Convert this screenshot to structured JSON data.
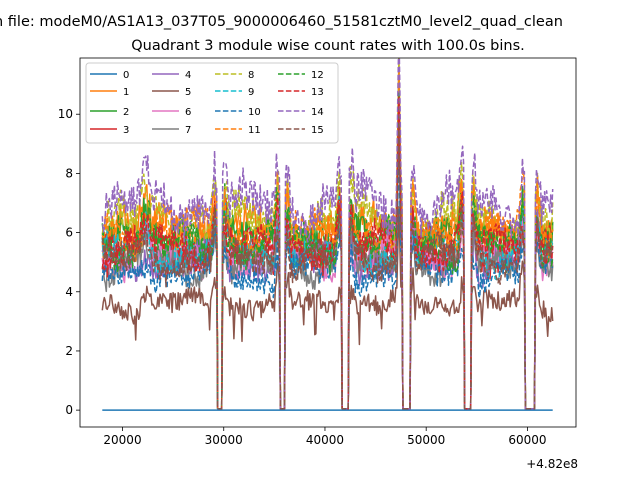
{
  "figure": {
    "suptitle": "n file: modeM0/AS1A13_037T05_9000006460_51581cztM0_level2_quad_clean",
    "title": "Quadrant 3 module wise count rates with 100.0s bins."
  },
  "chart_data": {
    "type": "line",
    "title": "Quadrant 3 module wise count rates with 100.0s bins.",
    "xlabel": "",
    "ylabel": "",
    "x_offset_label": "+4.82e8",
    "xlim": [
      15800,
      64800
    ],
    "ylim": [
      -0.57,
      11.9
    ],
    "xticks": [
      20000,
      30000,
      40000,
      50000,
      60000
    ],
    "yticks": [
      0,
      2,
      4,
      6,
      8,
      10
    ],
    "xtick_labels": [
      "20000",
      "30000",
      "40000",
      "50000",
      "60000"
    ],
    "ytick_labels": [
      "0",
      "2",
      "4",
      "6",
      "8",
      "10"
    ],
    "bin_width": 100,
    "legend": {
      "position": "top-left",
      "ncol": 4
    },
    "gaps": [
      {
        "start": 29400,
        "end": 29800
      },
      {
        "start": 35600,
        "end": 36000
      },
      {
        "start": 41700,
        "end": 42300
      },
      {
        "start": 47700,
        "end": 48400
      },
      {
        "start": 53800,
        "end": 54400
      },
      {
        "start": 59800,
        "end": 60700
      }
    ],
    "segments": [
      [
        18000,
        29300
      ],
      [
        29900,
        35500
      ],
      [
        36100,
        41600
      ],
      [
        42400,
        47600
      ],
      [
        48500,
        53700
      ],
      [
        54500,
        59700
      ],
      [
        60800,
        62500
      ]
    ],
    "spikes": [
      {
        "x": 47300,
        "factor": 1.9
      }
    ],
    "series": [
      {
        "name": "0",
        "color": "#1f77b4",
        "dashed": false,
        "level": 0.0
      },
      {
        "name": "1",
        "color": "#ff7f0e",
        "dashed": false,
        "level": 6.1
      },
      {
        "name": "2",
        "color": "#2ca02c",
        "dashed": false,
        "level": 5.7
      },
      {
        "name": "3",
        "color": "#d62728",
        "dashed": false,
        "level": 5.4
      },
      {
        "name": "4",
        "color": "#9467bd",
        "dashed": false,
        "level": 5.0
      },
      {
        "name": "5",
        "color": "#8c564b",
        "dashed": false,
        "level": 3.6
      },
      {
        "name": "6",
        "color": "#e377c2",
        "dashed": false,
        "level": 5.2
      },
      {
        "name": "7",
        "color": "#7f7f7f",
        "dashed": false,
        "level": 4.9
      },
      {
        "name": "8",
        "color": "#bcbd22",
        "dashed": true,
        "level": 6.4
      },
      {
        "name": "9",
        "color": "#17becf",
        "dashed": true,
        "level": 5.3
      },
      {
        "name": "10",
        "color": "#1f77b4",
        "dashed": true,
        "level": 4.6
      },
      {
        "name": "11",
        "color": "#ff7f0e",
        "dashed": true,
        "level": 6.0
      },
      {
        "name": "12",
        "color": "#2ca02c",
        "dashed": true,
        "level": 5.6
      },
      {
        "name": "13",
        "color": "#d62728",
        "dashed": true,
        "level": 5.5
      },
      {
        "name": "14",
        "color": "#9467bd",
        "dashed": true,
        "level": 6.9
      },
      {
        "name": "15",
        "color": "#8c564b",
        "dashed": true,
        "level": 5.1
      }
    ]
  }
}
